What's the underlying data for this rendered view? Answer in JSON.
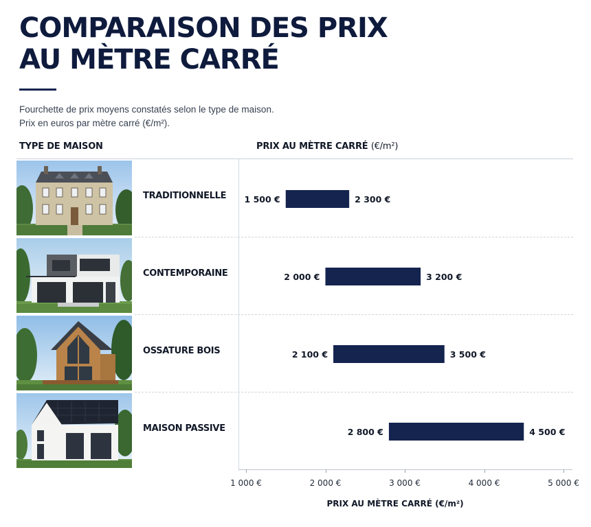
{
  "header": {
    "title_line1": "COMPARAISON DES PRIX",
    "title_line2": "AU MÈTRE CARRÉ",
    "subtitle_line1": "Fourchette de prix moyens constatés selon le type de maison.",
    "subtitle_line2": "Prix en euros par mètre carré (€/m²).",
    "accent_color": "#14244f"
  },
  "columns": {
    "type_head": "TYPE DE MAISON",
    "price_head": "PRIX AU MÈTRE CARRÉ",
    "price_unit": "(€/m²)"
  },
  "rows": [
    {
      "label": "TRADITIONNELLE",
      "photo": "traditional-stone-house-image",
      "min_label": "1 500 €",
      "max_label": "2 300 €"
    },
    {
      "label": "CONTEMPORAINE",
      "photo": "contemporary-house-image",
      "min_label": "2 000 €",
      "max_label": "3 200 €"
    },
    {
      "label": "OSSATURE BOIS",
      "photo": "timber-frame-house-image",
      "min_label": "2 100 €",
      "max_label": "3 500 €"
    },
    {
      "label": "MAISON PASSIVE",
      "photo": "passive-house-image",
      "min_label": "2 800 €",
      "max_label": "4 500 €"
    }
  ],
  "chart_data": {
    "type": "bar",
    "orientation": "horizontal-range",
    "categories": [
      "TRADITIONNELLE",
      "CONTEMPORAINE",
      "OSSATURE BOIS",
      "MAISON PASSIVE"
    ],
    "series": [
      {
        "values": [
          [
            1500,
            2300
          ],
          [
            2000,
            3200
          ],
          [
            2100,
            3500
          ],
          [
            2800,
            4500
          ]
        ]
      }
    ],
    "bar_color": "#14244f",
    "xlabel": "PRIX AU MÈTRE CARRÉ (€/m²)",
    "ylabel": "TYPE DE MAISON",
    "xlim": [
      1000,
      5000
    ],
    "xticks": [
      1000,
      2000,
      3000,
      4000,
      5000
    ],
    "xtick_labels": [
      "1 000 €",
      "2 000 €",
      "3 000 €",
      "4 000 €",
      "5 000 €"
    ],
    "grid": false
  }
}
